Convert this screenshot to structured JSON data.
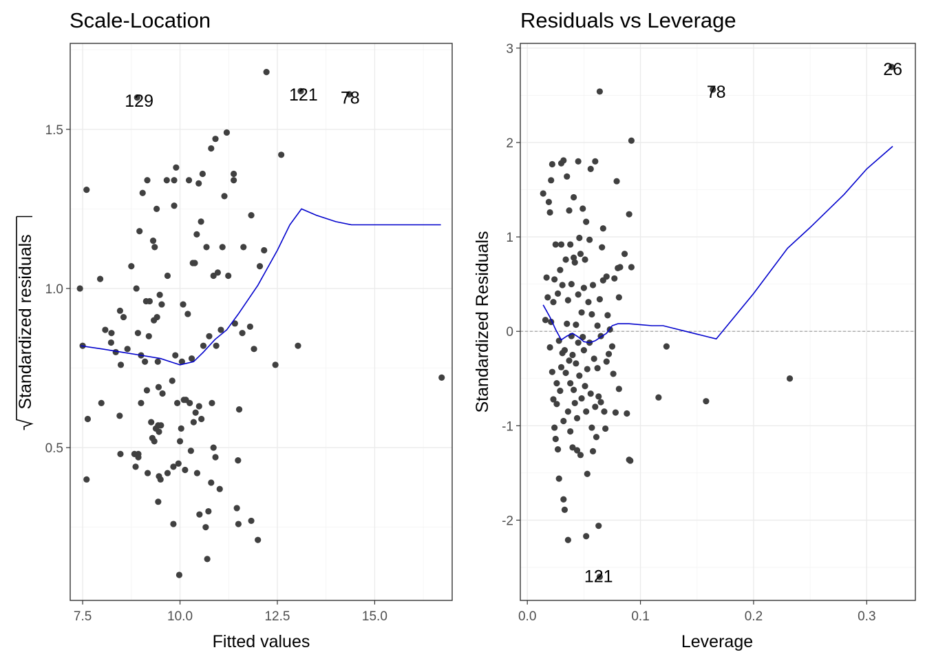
{
  "chart_data": [
    {
      "type": "scatter",
      "title": "Scale-Location",
      "xlabel": "Fitted values",
      "ylabel": "Standardized residuals",
      "xlim": [
        7.18,
        16.99
      ],
      "ylim": [
        0.02,
        1.77
      ],
      "xticks": [
        {
          "value": 7.5,
          "label": "7.5"
        },
        {
          "value": 10,
          "label": "10.0"
        },
        {
          "value": 12.5,
          "label": "12.5"
        },
        {
          "value": 15,
          "label": "15.0"
        }
      ],
      "yticks": [
        {
          "value": 0.5,
          "label": "0.5"
        },
        {
          "value": 1,
          "label": "1.0"
        },
        {
          "value": 1.5,
          "label": "1.5"
        }
      ],
      "grid": true,
      "points": [
        [
          7.43,
          1.0
        ],
        [
          7.5,
          0.82
        ],
        [
          7.6,
          1.31
        ],
        [
          7.63,
          0.59
        ],
        [
          7.6,
          0.4
        ],
        [
          7.95,
          1.03
        ],
        [
          7.98,
          0.64
        ],
        [
          8.08,
          0.87
        ],
        [
          8.24,
          0.86
        ],
        [
          8.23,
          0.83
        ],
        [
          8.35,
          0.8
        ],
        [
          8.45,
          0.6
        ],
        [
          8.47,
          0.48
        ],
        [
          8.48,
          0.76
        ],
        [
          8.46,
          0.93
        ],
        [
          8.55,
          0.91
        ],
        [
          8.65,
          0.81
        ],
        [
          8.75,
          1.07
        ],
        [
          8.83,
          0.48
        ],
        [
          8.86,
          0.44
        ],
        [
          8.88,
          1.0
        ],
        [
          8.92,
          0.86
        ],
        [
          8.93,
          0.47
        ],
        [
          8.93,
          0.48
        ],
        [
          8.96,
          1.18
        ],
        [
          9.0,
          0.64
        ],
        [
          9.0,
          0.79
        ],
        [
          9.04,
          1.3
        ],
        [
          9.1,
          0.77
        ],
        [
          9.13,
          0.96
        ],
        [
          9.17,
          0.42
        ],
        [
          9.15,
          0.68
        ],
        [
          9.16,
          1.34
        ],
        [
          9.2,
          0.85
        ],
        [
          9.22,
          0.96
        ],
        [
          9.26,
          0.58
        ],
        [
          9.29,
          0.53
        ],
        [
          9.31,
          1.15
        ],
        [
          9.34,
          0.52
        ],
        [
          9.33,
          0.9
        ],
        [
          9.35,
          1.13
        ],
        [
          9.38,
          0.56
        ],
        [
          9.4,
          1.25
        ],
        [
          9.43,
          0.77
        ],
        [
          9.41,
          0.91
        ],
        [
          9.44,
          0.57
        ],
        [
          9.44,
          0.33
        ],
        [
          9.46,
          0.55
        ],
        [
          9.45,
          0.69
        ],
        [
          9.46,
          0.41
        ],
        [
          9.48,
          0.98
        ],
        [
          9.5,
          0.4
        ],
        [
          9.53,
          0.95
        ],
        [
          9.55,
          0.67
        ],
        [
          9.51,
          0.57
        ],
        [
          9.66,
          1.34
        ],
        [
          9.68,
          0.42
        ],
        [
          9.68,
          1.04
        ],
        [
          9.8,
          0.71
        ],
        [
          9.83,
          0.26
        ],
        [
          9.83,
          0.44
        ],
        [
          9.85,
          1.26
        ],
        [
          9.85,
          1.34
        ],
        [
          9.88,
          0.79
        ],
        [
          9.9,
          1.38
        ],
        [
          9.93,
          0.64
        ],
        [
          9.96,
          0.45
        ],
        [
          9.98,
          0.1
        ],
        [
          10.0,
          0.52
        ],
        [
          10.03,
          0.56
        ],
        [
          10.05,
          0.77
        ],
        [
          10.08,
          0.95
        ],
        [
          10.1,
          0.65
        ],
        [
          10.13,
          0.43
        ],
        [
          10.15,
          0.65
        ],
        [
          10.2,
          0.92
        ],
        [
          10.23,
          1.34
        ],
        [
          10.25,
          0.64
        ],
        [
          10.28,
          0.49
        ],
        [
          10.3,
          0.78
        ],
        [
          10.33,
          1.08
        ],
        [
          10.35,
          0.58
        ],
        [
          10.38,
          1.08
        ],
        [
          10.4,
          0.61
        ],
        [
          10.43,
          1.17
        ],
        [
          10.44,
          0.42
        ],
        [
          10.48,
          1.33
        ],
        [
          10.49,
          0.63
        ],
        [
          10.5,
          0.29
        ],
        [
          10.55,
          0.59
        ],
        [
          10.54,
          1.21
        ],
        [
          10.58,
          1.36
        ],
        [
          10.6,
          0.82
        ],
        [
          10.66,
          0.25
        ],
        [
          10.68,
          1.13
        ],
        [
          10.7,
          0.15
        ],
        [
          10.73,
          0.3
        ],
        [
          10.75,
          0.85
        ],
        [
          10.8,
          1.44
        ],
        [
          10.8,
          0.39
        ],
        [
          10.82,
          0.64
        ],
        [
          10.86,
          1.04
        ],
        [
          10.86,
          0.5
        ],
        [
          10.91,
          1.47
        ],
        [
          10.91,
          0.47
        ],
        [
          10.93,
          0.82
        ],
        [
          10.97,
          1.05
        ],
        [
          11.02,
          0.37
        ],
        [
          11.05,
          0.87
        ],
        [
          11.09,
          1.13
        ],
        [
          11.14,
          1.29
        ],
        [
          11.2,
          1.49
        ],
        [
          11.24,
          1.04
        ],
        [
          11.38,
          1.36
        ],
        [
          11.38,
          1.34
        ],
        [
          11.41,
          0.89
        ],
        [
          11.46,
          0.31
        ],
        [
          11.49,
          0.46
        ],
        [
          11.5,
          0.26
        ],
        [
          11.52,
          0.62
        ],
        [
          11.6,
          0.86
        ],
        [
          11.63,
          1.13
        ],
        [
          11.8,
          0.88
        ],
        [
          11.83,
          0.27
        ],
        [
          11.83,
          1.23
        ],
        [
          11.9,
          0.81
        ],
        [
          12.0,
          0.21
        ],
        [
          12.05,
          1.07
        ],
        [
          12.16,
          1.12
        ],
        [
          12.22,
          1.68
        ],
        [
          12.45,
          0.76
        ],
        [
          12.6,
          1.42
        ],
        [
          13.03,
          0.82
        ],
        [
          16.72,
          0.72
        ]
      ],
      "smooth_line": [
        [
          7.45,
          0.82
        ],
        [
          8.0,
          0.81
        ],
        [
          8.5,
          0.8
        ],
        [
          9.0,
          0.79
        ],
        [
          9.5,
          0.78
        ],
        [
          10.0,
          0.76
        ],
        [
          10.35,
          0.77
        ],
        [
          10.6,
          0.8
        ],
        [
          10.9,
          0.84
        ],
        [
          11.2,
          0.87
        ],
        [
          11.5,
          0.92
        ],
        [
          12.0,
          1.01
        ],
        [
          12.5,
          1.12
        ],
        [
          12.82,
          1.2
        ],
        [
          13.12,
          1.25
        ],
        [
          13.5,
          1.23
        ],
        [
          14.0,
          1.21
        ],
        [
          14.4,
          1.2
        ],
        [
          15.0,
          1.2
        ],
        [
          16.7,
          1.2
        ]
      ],
      "labels": [
        {
          "text": "129",
          "x": 8.95,
          "y": 1.59
        },
        {
          "text": "121",
          "x": 13.17,
          "y": 1.61
        },
        {
          "text": "78",
          "x": 14.37,
          "y": 1.6
        }
      ],
      "labeled_points": [
        [
          8.9,
          1.6
        ],
        [
          13.1,
          1.62
        ],
        [
          14.35,
          1.61
        ]
      ]
    },
    {
      "type": "scatter",
      "title": "Residuals vs Leverage",
      "xlabel": "Leverage",
      "ylabel": "Standardized Residuals",
      "xlim": [
        -0.0062,
        0.343
      ],
      "ylim": [
        -2.85,
        3.05
      ],
      "xticks": [
        {
          "value": 0,
          "label": "0.0"
        },
        {
          "value": 0.1,
          "label": "0.1"
        },
        {
          "value": 0.2,
          "label": "0.2"
        },
        {
          "value": 0.3,
          "label": "0.3"
        }
      ],
      "yticks": [
        {
          "value": -2,
          "label": "-2"
        },
        {
          "value": -1,
          "label": "-1"
        },
        {
          "value": 0,
          "label": "0"
        },
        {
          "value": 1,
          "label": "1"
        },
        {
          "value": 2,
          "label": "2"
        },
        {
          "value": 3,
          "label": "3"
        }
      ],
      "grid": true,
      "reference_line": 0,
      "points": [
        [
          0.014,
          1.46
        ],
        [
          0.016,
          0.12
        ],
        [
          0.017,
          0.57
        ],
        [
          0.018,
          0.36
        ],
        [
          0.019,
          1.37
        ],
        [
          0.02,
          1.26
        ],
        [
          0.02,
          -0.17
        ],
        [
          0.021,
          0.1
        ],
        [
          0.021,
          1.6
        ],
        [
          0.022,
          1.77
        ],
        [
          0.022,
          -0.43
        ],
        [
          0.023,
          -0.72
        ],
        [
          0.023,
          0.31
        ],
        [
          0.024,
          0.55
        ],
        [
          0.024,
          -1.02
        ],
        [
          0.025,
          -1.14
        ],
        [
          0.025,
          0.92
        ],
        [
          0.026,
          -0.55
        ],
        [
          0.026,
          -0.77
        ],
        [
          0.027,
          -1.25
        ],
        [
          0.027,
          0.4
        ],
        [
          0.028,
          -0.1
        ],
        [
          0.028,
          -1.56
        ],
        [
          0.029,
          -0.63
        ],
        [
          0.029,
          0.65
        ],
        [
          0.03,
          0.92
        ],
        [
          0.03,
          1.78
        ],
        [
          0.03,
          -0.38
        ],
        [
          0.031,
          -0.23
        ],
        [
          0.031,
          0.49
        ],
        [
          0.032,
          -0.95
        ],
        [
          0.032,
          1.81
        ],
        [
          0.032,
          -1.78
        ],
        [
          0.033,
          -1.89
        ],
        [
          0.033,
          -0.2
        ],
        [
          0.034,
          0.76
        ],
        [
          0.034,
          -0.44
        ],
        [
          0.035,
          1.64
        ],
        [
          0.035,
          0.08
        ],
        [
          0.036,
          0.33
        ],
        [
          0.036,
          -0.85
        ],
        [
          0.036,
          -2.21
        ],
        [
          0.037,
          1.28
        ],
        [
          0.037,
          -0.31
        ],
        [
          0.038,
          0.92
        ],
        [
          0.038,
          -1.06
        ],
        [
          0.038,
          -0.55
        ],
        [
          0.039,
          0.5
        ],
        [
          0.039,
          -0.05
        ],
        [
          0.04,
          -0.25
        ],
        [
          0.04,
          -1.23
        ],
        [
          0.041,
          0.78
        ],
        [
          0.041,
          -0.62
        ],
        [
          0.041,
          1.42
        ],
        [
          0.042,
          -0.76
        ],
        [
          0.042,
          0.73
        ],
        [
          0.043,
          -0.34
        ],
        [
          0.043,
          0.07
        ],
        [
          0.044,
          -0.92
        ],
        [
          0.044,
          -1.26
        ],
        [
          0.045,
          0.39
        ],
        [
          0.045,
          -0.12
        ],
        [
          0.045,
          1.8
        ],
        [
          0.046,
          0.99
        ],
        [
          0.046,
          -0.47
        ],
        [
          0.047,
          0.82
        ],
        [
          0.047,
          -1.31
        ],
        [
          0.048,
          -0.71
        ],
        [
          0.048,
          0.2
        ],
        [
          0.049,
          1.3
        ],
        [
          0.049,
          -0.06
        ],
        [
          0.05,
          -0.2
        ],
        [
          0.05,
          0.46
        ],
        [
          0.051,
          -0.58
        ],
        [
          0.051,
          0.76
        ],
        [
          0.052,
          -0.85
        ],
        [
          0.052,
          1.16
        ],
        [
          0.052,
          -2.17
        ],
        [
          0.053,
          -0.4
        ],
        [
          0.053,
          -1.51
        ],
        [
          0.054,
          0.31
        ],
        [
          0.055,
          0.97
        ],
        [
          0.055,
          -0.12
        ],
        [
          0.056,
          -0.66
        ],
        [
          0.056,
          1.72
        ],
        [
          0.057,
          -1.02
        ],
        [
          0.057,
          0.18
        ],
        [
          0.058,
          0.49
        ],
        [
          0.058,
          -1.27
        ],
        [
          0.059,
          -0.29
        ],
        [
          0.06,
          1.8
        ],
        [
          0.06,
          -0.8
        ],
        [
          0.061,
          -1.12
        ],
        [
          0.062,
          0.06
        ],
        [
          0.062,
          -0.39
        ],
        [
          0.063,
          -2.06
        ],
        [
          0.063,
          -0.69
        ],
        [
          0.064,
          2.54
        ],
        [
          0.064,
          0.34
        ],
        [
          0.065,
          -0.75
        ],
        [
          0.065,
          -0.05
        ],
        [
          0.066,
          0.89
        ],
        [
          0.067,
          0.54
        ],
        [
          0.067,
          1.09
        ],
        [
          0.068,
          -0.85
        ],
        [
          0.069,
          -1.03
        ],
        [
          0.07,
          0.58
        ],
        [
          0.07,
          -0.32
        ],
        [
          0.071,
          0.17
        ],
        [
          0.072,
          -0.24
        ],
        [
          0.073,
          0.02
        ],
        [
          0.075,
          -0.16
        ],
        [
          0.076,
          -0.45
        ],
        [
          0.077,
          0.56
        ],
        [
          0.078,
          -0.86
        ],
        [
          0.079,
          1.59
        ],
        [
          0.08,
          0.67
        ],
        [
          0.081,
          -0.61
        ],
        [
          0.081,
          0.36
        ],
        [
          0.082,
          0.68
        ],
        [
          0.086,
          0.82
        ],
        [
          0.088,
          -0.87
        ],
        [
          0.09,
          1.24
        ],
        [
          0.09,
          -1.36
        ],
        [
          0.091,
          -1.37
        ],
        [
          0.092,
          2.02
        ],
        [
          0.092,
          0.68
        ],
        [
          0.116,
          -0.7
        ],
        [
          0.123,
          -0.16
        ],
        [
          0.158,
          -0.74
        ],
        [
          0.232,
          -0.5
        ]
      ],
      "smooth_line": [
        [
          0.014,
          0.28
        ],
        [
          0.02,
          0.15
        ],
        [
          0.025,
          0.02
        ],
        [
          0.03,
          -0.09
        ],
        [
          0.035,
          -0.05
        ],
        [
          0.04,
          -0.02
        ],
        [
          0.045,
          -0.06
        ],
        [
          0.05,
          -0.11
        ],
        [
          0.055,
          -0.12
        ],
        [
          0.06,
          -0.1
        ],
        [
          0.065,
          -0.06
        ],
        [
          0.07,
          -0.02
        ],
        [
          0.075,
          0.06
        ],
        [
          0.08,
          0.08
        ],
        [
          0.09,
          0.08
        ],
        [
          0.1,
          0.07
        ],
        [
          0.11,
          0.06
        ],
        [
          0.12,
          0.06
        ],
        [
          0.13,
          0.03
        ],
        [
          0.14,
          0.0
        ],
        [
          0.15,
          -0.03
        ],
        [
          0.16,
          -0.06
        ],
        [
          0.167,
          -0.08
        ],
        [
          0.2,
          0.4
        ],
        [
          0.23,
          0.88
        ],
        [
          0.25,
          1.1
        ],
        [
          0.28,
          1.45
        ],
        [
          0.3,
          1.72
        ],
        [
          0.323,
          1.96
        ]
      ],
      "labels": [
        {
          "text": "78",
          "x": 0.167,
          "y": 2.54
        },
        {
          "text": "26",
          "x": 0.323,
          "y": 2.78
        },
        {
          "text": "121",
          "x": 0.063,
          "y": -2.59
        }
      ],
      "labeled_points": [
        [
          0.164,
          2.56
        ],
        [
          0.322,
          2.8
        ],
        [
          0.064,
          -2.6
        ]
      ]
    }
  ]
}
